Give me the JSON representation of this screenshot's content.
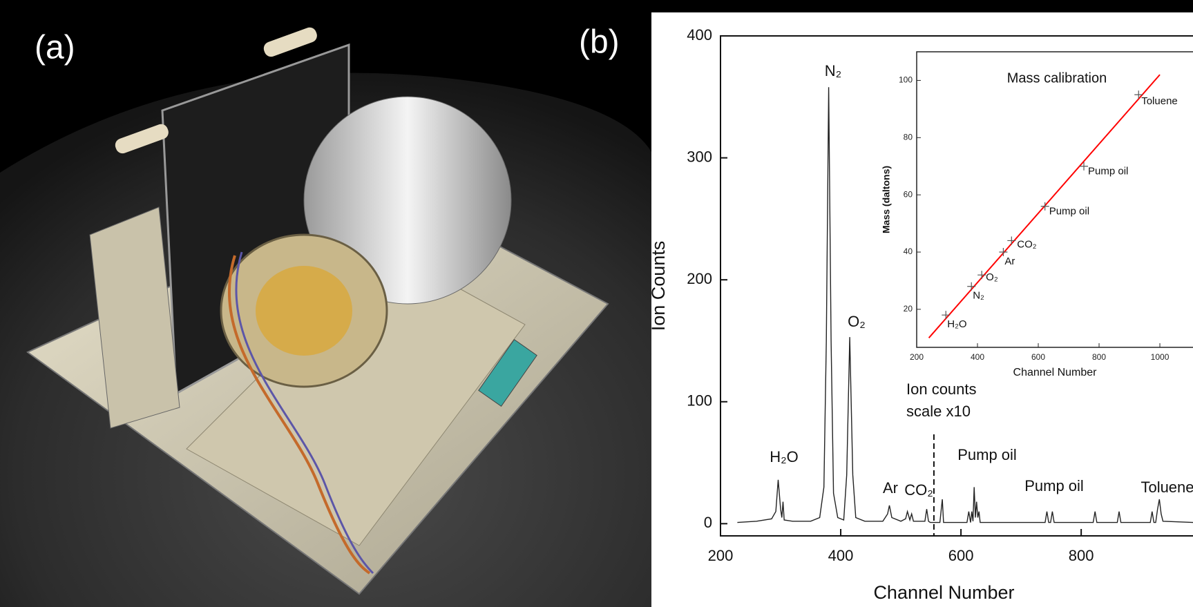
{
  "panel_labels": [
    "(a)",
    "(b)"
  ],
  "chart_data": [
    {
      "type": "line",
      "x_label": "Channel Number",
      "y_label": "Ion Counts",
      "x": [
        228,
        260,
        285,
        292,
        296,
        300,
        302,
        304,
        306,
        320,
        350,
        365,
        372,
        376,
        380,
        384,
        388,
        395,
        405,
        410,
        415,
        420,
        425,
        440,
        470,
        478,
        481,
        485,
        500,
        508,
        511,
        515,
        518,
        521,
        524,
        540,
        543,
        546,
        549,
        565,
        569,
        571,
        573,
        610,
        613,
        616,
        618,
        620,
        622,
        624,
        626,
        628,
        630,
        632,
        634,
        640,
        740,
        743,
        746,
        749,
        752,
        755,
        758,
        820,
        823,
        826,
        860,
        863,
        866,
        915,
        918,
        921,
        924,
        927,
        930,
        933,
        936,
        986
      ],
      "series": [
        {
          "name": "Ion counts",
          "color": "#222222",
          "values": [
            1,
            2,
            4,
            10,
            36,
            12,
            5,
            18,
            3,
            2,
            2,
            5,
            30,
            150,
            358,
            150,
            25,
            5,
            3,
            40,
            153,
            40,
            5,
            2,
            2,
            8,
            15,
            5,
            2,
            4,
            10,
            3,
            8,
            2,
            2,
            2,
            12,
            2,
            1,
            1,
            20,
            1,
            1,
            1,
            10,
            1,
            10,
            2,
            30,
            5,
            18,
            5,
            10,
            1,
            1,
            1,
            1,
            10,
            1,
            1,
            10,
            1,
            1,
            1,
            10,
            1,
            1,
            10,
            1,
            1,
            10,
            1,
            1,
            12,
            20,
            8,
            2,
            1
          ]
        }
      ],
      "annotations": [
        "N₂",
        "O₂",
        "H₂O",
        "Ar",
        "CO₂",
        "Pump oil",
        "Pump oil",
        "Toluene",
        "Ion counts",
        "scale x10"
      ],
      "divider_x": 555,
      "xlim": [
        200,
        986
      ],
      "xticks": [
        200,
        400,
        600,
        800
      ],
      "ylim": [
        -10,
        400
      ],
      "yticks": [
        0,
        100,
        200,
        300,
        400
      ]
    },
    {
      "type": "scatter",
      "title": "Mass calibration",
      "x_label": "Channel Number",
      "y_label": "Mass (daltons)",
      "x": [
        296,
        380,
        414,
        485,
        512,
        622,
        750,
        930
      ],
      "values": [
        18,
        28,
        32,
        40,
        44,
        56,
        70,
        95
      ],
      "point_labels": [
        "H₂O",
        "N₂",
        "O₂",
        "Ar",
        "CO₂",
        "Pump oil",
        "Pump oil",
        "Toluene"
      ],
      "marker_color": "#555555",
      "fit": {
        "color": "#ff0000",
        "x": [
          240,
          1000
        ],
        "values": [
          10,
          102
        ]
      },
      "xlim": [
        200,
        1109
      ],
      "xticks": [
        200,
        400,
        600,
        800,
        1000
      ],
      "ylim": [
        6.7,
        110
      ],
      "yticks": [
        20,
        40,
        60,
        80,
        100
      ]
    }
  ]
}
